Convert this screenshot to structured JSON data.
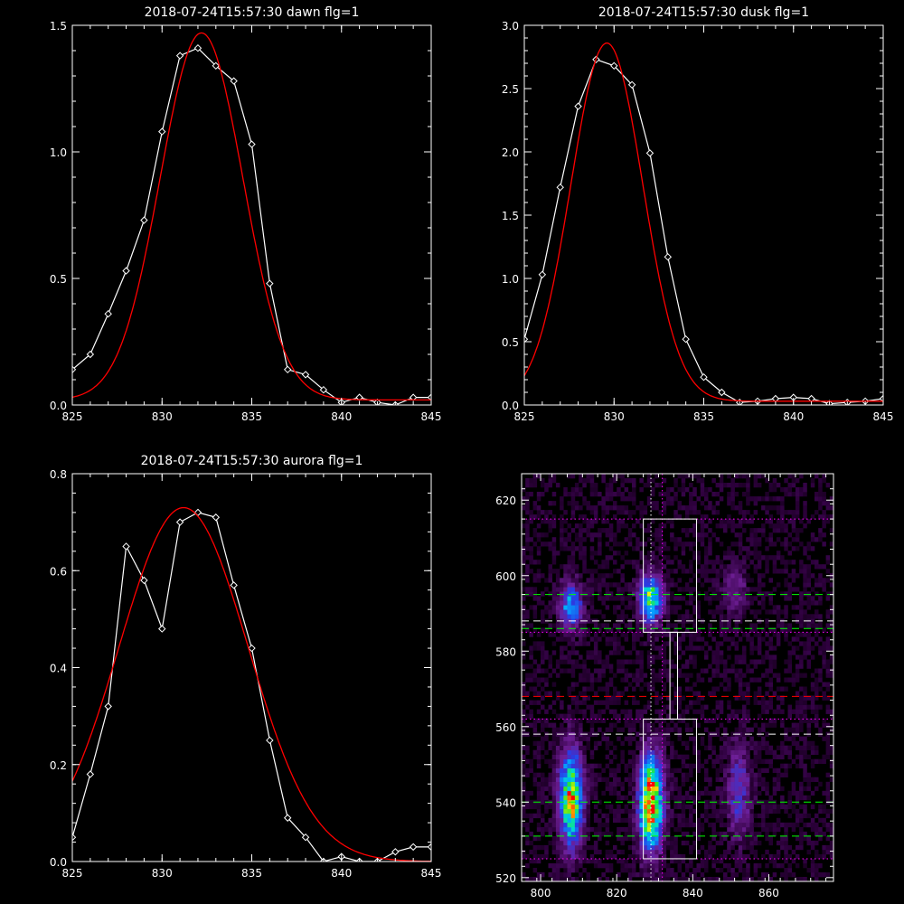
{
  "chart_data": [
    {
      "type": "line",
      "title": "2018-07-24T15:57:30 dawn flg=1",
      "xlim": [
        825,
        845
      ],
      "ylim": [
        0,
        1.5
      ],
      "xticks": [
        825,
        830,
        835,
        840,
        845
      ],
      "yticks": [
        0.0,
        0.5,
        1.0,
        1.5
      ],
      "xtick_labels": [
        "825",
        "830",
        "835",
        "840",
        "845"
      ],
      "ytick_labels": [
        "0.0",
        "0.5",
        "1.0",
        "1.5"
      ],
      "series": [
        {
          "color": "#ffffff",
          "marker": "diamond",
          "x": [
            825,
            826,
            827,
            828,
            829,
            830,
            831,
            832,
            833,
            834,
            835,
            836,
            837,
            838,
            839,
            840,
            841,
            842,
            843,
            844,
            845
          ],
          "y": [
            0.14,
            0.2,
            0.36,
            0.53,
            0.73,
            1.08,
            1.38,
            1.41,
            1.34,
            1.28,
            1.03,
            0.48,
            0.14,
            0.12,
            0.06,
            0.01,
            0.03,
            0.01,
            0.0,
            0.03,
            0.03
          ]
        },
        {
          "color": "#ff0000",
          "fit": "gaussian",
          "amplitude": 1.45,
          "center": 832.2,
          "sigma": 2.3,
          "offset": 0.02
        }
      ]
    },
    {
      "type": "line",
      "title": "2018-07-24T15:57:30 dusk flg=1",
      "xlim": [
        825,
        845
      ],
      "ylim": [
        0,
        3.0
      ],
      "xticks": [
        825,
        830,
        835,
        840,
        845
      ],
      "yticks": [
        0.0,
        0.5,
        1.0,
        1.5,
        2.0,
        2.5,
        3.0
      ],
      "xtick_labels": [
        "825",
        "830",
        "835",
        "840",
        "845"
      ],
      "ytick_labels": [
        "0.0",
        "0.5",
        "1.0",
        "1.5",
        "2.0",
        "2.5",
        "3.0"
      ],
      "series": [
        {
          "color": "#ffffff",
          "marker": "diamond",
          "x": [
            825,
            826,
            827,
            828,
            829,
            830,
            831,
            832,
            833,
            834,
            835,
            836,
            837,
            838,
            839,
            840,
            841,
            842,
            843,
            844,
            845
          ],
          "y": [
            0.52,
            1.03,
            1.72,
            2.36,
            2.73,
            2.68,
            2.53,
            1.99,
            1.17,
            0.52,
            0.22,
            0.1,
            0.02,
            0.03,
            0.05,
            0.06,
            0.05,
            0.01,
            0.02,
            0.03,
            0.05
          ]
        },
        {
          "color": "#ff0000",
          "fit": "gaussian",
          "amplitude": 2.83,
          "center": 829.6,
          "sigma": 2.0,
          "offset": 0.03
        }
      ]
    },
    {
      "type": "line",
      "title": "2018-07-24T15:57:30 aurora flg=1",
      "xlim": [
        825,
        845
      ],
      "ylim": [
        0,
        0.8
      ],
      "xticks": [
        825,
        830,
        835,
        840,
        845
      ],
      "yticks": [
        0.0,
        0.2,
        0.4,
        0.6,
        0.8
      ],
      "xtick_labels": [
        "825",
        "830",
        "835",
        "840",
        "845"
      ],
      "ytick_labels": [
        "0.0",
        "0.2",
        "0.4",
        "0.6",
        "0.8"
      ],
      "series": [
        {
          "color": "#ffffff",
          "marker": "diamond",
          "x": [
            825,
            826,
            827,
            828,
            829,
            830,
            831,
            832,
            833,
            834,
            835,
            836,
            837,
            838,
            839,
            840,
            841,
            842,
            843,
            844,
            845
          ],
          "y": [
            0.05,
            0.18,
            0.32,
            0.65,
            0.58,
            0.48,
            0.7,
            0.72,
            0.71,
            0.57,
            0.44,
            0.25,
            0.09,
            0.05,
            0.0,
            0.01,
            0.0,
            0.0,
            0.02,
            0.03,
            0.03
          ]
        },
        {
          "color": "#ff0000",
          "fit": "gaussian",
          "amplitude": 0.73,
          "center": 831.2,
          "sigma": 3.6,
          "offset": 0.0
        }
      ]
    },
    {
      "type": "heatmap",
      "xlim": [
        795,
        877
      ],
      "ylim": [
        519,
        627
      ],
      "xticks": [
        800,
        820,
        840,
        860
      ],
      "yticks": [
        520,
        540,
        560,
        580,
        600,
        620
      ],
      "xtick_labels": [
        "800",
        "820",
        "840",
        "860"
      ],
      "ytick_labels": [
        "520",
        "540",
        "560",
        "580",
        "600",
        "620"
      ],
      "blobs": [
        {
          "x": 808,
          "y": 592,
          "intensity": 0.5
        },
        {
          "x": 829,
          "y": 594,
          "intensity": 0.7
        },
        {
          "x": 851,
          "y": 596,
          "intensity": 0.2
        },
        {
          "x": 808,
          "y": 541,
          "intensity": 0.85
        },
        {
          "x": 829,
          "y": 540,
          "intensity": 1.0
        },
        {
          "x": 852,
          "y": 543,
          "intensity": 0.3
        }
      ],
      "boxes": [
        {
          "x0": 827,
          "x1": 841,
          "y0": 585,
          "y1": 615
        },
        {
          "x0": 834,
          "x1": 836,
          "y0": 562,
          "y1": 585
        },
        {
          "x0": 827,
          "x1": 841,
          "y0": 525,
          "y1": 562
        }
      ],
      "hlines": [
        {
          "y": 615,
          "color": "#ff00ff",
          "style": "dotted"
        },
        {
          "y": 595,
          "color": "#00ff00",
          "style": "dashed"
        },
        {
          "y": 588,
          "color": "#ffffff",
          "style": "dashed"
        },
        {
          "y": 586,
          "color": "#00ff00",
          "style": "dashed"
        },
        {
          "y": 585,
          "color": "#ff00ff",
          "style": "dotted"
        },
        {
          "y": 568,
          "color": "#ff0000",
          "style": "dashed"
        },
        {
          "y": 562,
          "color": "#ff00ff",
          "style": "dotted"
        },
        {
          "y": 558,
          "color": "#ffffff",
          "style": "dashed"
        },
        {
          "y": 540,
          "color": "#00ff00",
          "style": "dashed"
        },
        {
          "y": 531,
          "color": "#00ff00",
          "style": "dashed"
        },
        {
          "y": 525,
          "color": "#ff00ff",
          "style": "dotted"
        }
      ],
      "vlines": [
        {
          "x": 829,
          "color": "#ffffff",
          "style": "dotted"
        },
        {
          "x": 832,
          "color": "#ff00ff",
          "style": "dotted"
        }
      ]
    }
  ]
}
